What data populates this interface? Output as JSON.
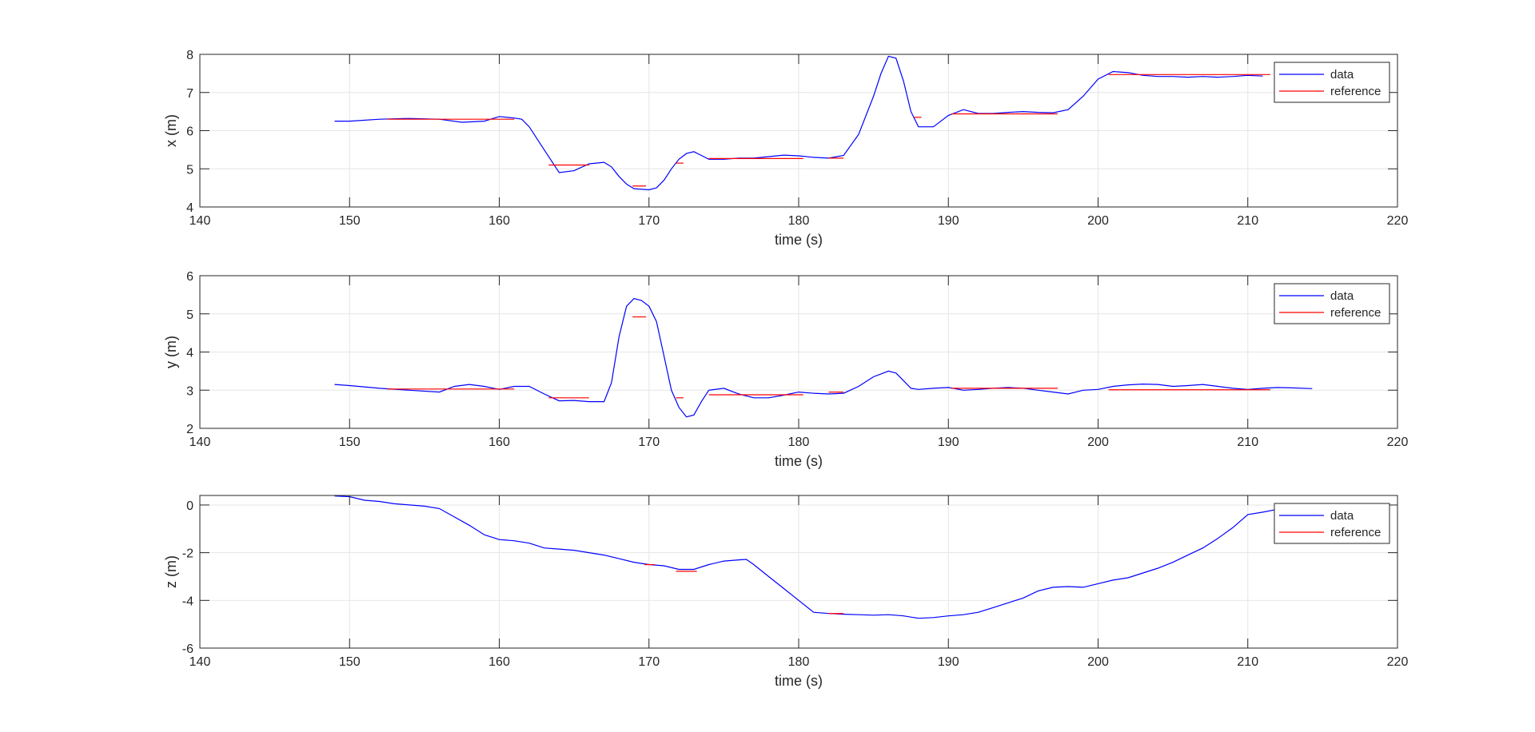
{
  "chart_data": [
    {
      "type": "line",
      "title": "",
      "xlabel": "time (s)",
      "ylabel": "x (m)",
      "xlim": [
        140,
        220
      ],
      "ylim": [
        4,
        8
      ],
      "xticks": [
        140,
        150,
        160,
        170,
        180,
        190,
        200,
        210,
        220
      ],
      "yticks": [
        4,
        5,
        6,
        7,
        8
      ],
      "grid": true,
      "legend": {
        "position": "top-right",
        "entries": [
          "data",
          "reference"
        ]
      },
      "series": [
        {
          "name": "data",
          "color": "#0000ff",
          "x": [
            149,
            150,
            152,
            154,
            156,
            157.5,
            159,
            160,
            161,
            161.5,
            162,
            163,
            164,
            165,
            166,
            167,
            167.5,
            168,
            168.5,
            169,
            170,
            170.5,
            171,
            171.5,
            172,
            172.5,
            173,
            173.5,
            174,
            175,
            176,
            177,
            178,
            179,
            180,
            181,
            182,
            183,
            184,
            185,
            185.5,
            186,
            186.5,
            187,
            187.5,
            188,
            189,
            190,
            191,
            192,
            193,
            194,
            195,
            196,
            197,
            198,
            199,
            200,
            201,
            202,
            203,
            204,
            205,
            206,
            207,
            208,
            209,
            210,
            211
          ],
          "values": [
            6.25,
            6.25,
            6.3,
            6.32,
            6.3,
            6.22,
            6.25,
            6.37,
            6.33,
            6.3,
            6.1,
            5.5,
            4.9,
            4.95,
            5.13,
            5.17,
            5.05,
            4.8,
            4.6,
            4.48,
            4.45,
            4.5,
            4.7,
            5.0,
            5.25,
            5.4,
            5.45,
            5.35,
            5.25,
            5.25,
            5.28,
            5.28,
            5.32,
            5.36,
            5.34,
            5.3,
            5.28,
            5.35,
            5.9,
            6.9,
            7.5,
            7.95,
            7.9,
            7.3,
            6.5,
            6.1,
            6.1,
            6.4,
            6.55,
            6.45,
            6.45,
            6.48,
            6.5,
            6.48,
            6.47,
            6.55,
            6.9,
            7.35,
            7.55,
            7.52,
            7.45,
            7.42,
            7.42,
            7.4,
            7.42,
            7.4,
            7.42,
            7.45,
            7.43
          ]
        },
        {
          "name": "reference",
          "color": "#ff0000",
          "segments": [
            {
              "x": [
                152.5,
                161
              ],
              "y": 6.3
            },
            {
              "x": [
                163.3,
                166
              ],
              "y": 5.1
            },
            {
              "x": [
                168.9,
                169.8
              ],
              "y": 4.55
            },
            {
              "x": [
                171.8,
                172.3
              ],
              "y": 5.15
            },
            {
              "x": [
                174,
                180.3
              ],
              "y": 5.27
            },
            {
              "x": [
                182,
                183
              ],
              "y": 5.28
            },
            {
              "x": [
                187.7,
                188.2
              ],
              "y": 6.35
            },
            {
              "x": [
                190.2,
                197.3
              ],
              "y": 6.44
            },
            {
              "x": [
                200.7,
                211.5
              ],
              "y": 7.47
            }
          ]
        }
      ]
    },
    {
      "type": "line",
      "title": "",
      "xlabel": "time (s)",
      "ylabel": "y (m)",
      "xlim": [
        140,
        220
      ],
      "ylim": [
        2,
        6
      ],
      "xticks": [
        140,
        150,
        160,
        170,
        180,
        190,
        200,
        210,
        220
      ],
      "yticks": [
        2,
        3,
        4,
        5,
        6
      ],
      "grid": true,
      "legend": {
        "position": "top-right",
        "entries": [
          "data",
          "reference"
        ]
      },
      "series": [
        {
          "name": "data",
          "color": "#0000ff",
          "x": [
            149,
            150,
            152,
            154,
            156,
            157,
            158,
            159,
            160,
            161,
            162,
            163,
            164,
            165,
            166,
            167,
            167.5,
            168,
            168.5,
            169,
            169.5,
            170,
            170.5,
            171,
            171.5,
            172,
            172.5,
            173,
            173.5,
            174,
            175,
            176,
            177,
            178,
            179,
            180,
            181,
            182,
            183,
            184,
            185,
            186,
            186.5,
            187,
            187.5,
            188,
            189,
            190,
            191,
            192,
            193,
            194,
            195,
            196,
            197,
            198,
            199,
            200,
            201,
            202,
            203,
            204,
            205,
            206,
            207,
            208,
            209,
            210,
            211,
            212,
            213,
            214.3
          ],
          "values": [
            3.15,
            3.12,
            3.05,
            3.0,
            2.95,
            3.1,
            3.15,
            3.1,
            3.02,
            3.1,
            3.1,
            2.9,
            2.72,
            2.73,
            2.7,
            2.7,
            3.2,
            4.4,
            5.2,
            5.4,
            5.35,
            5.2,
            4.8,
            3.9,
            3.0,
            2.55,
            2.3,
            2.35,
            2.7,
            3.0,
            3.05,
            2.9,
            2.8,
            2.8,
            2.87,
            2.95,
            2.92,
            2.9,
            2.92,
            3.1,
            3.35,
            3.5,
            3.45,
            3.25,
            3.05,
            3.02,
            3.05,
            3.07,
            3.0,
            3.02,
            3.05,
            3.07,
            3.05,
            3.0,
            2.95,
            2.9,
            3.0,
            3.02,
            3.1,
            3.14,
            3.16,
            3.15,
            3.1,
            3.12,
            3.15,
            3.1,
            3.05,
            3.02,
            3.05,
            3.07,
            3.06,
            3.04
          ]
        },
        {
          "name": "reference",
          "color": "#ff0000",
          "segments": [
            {
              "x": [
                152.5,
                161
              ],
              "y": 3.03
            },
            {
              "x": [
                163.3,
                166
              ],
              "y": 2.8
            },
            {
              "x": [
                168.9,
                169.8
              ],
              "y": 4.92
            },
            {
              "x": [
                171.8,
                172.3
              ],
              "y": 2.8
            },
            {
              "x": [
                174,
                180.3
              ],
              "y": 2.88
            },
            {
              "x": [
                182,
                183
              ],
              "y": 2.95
            },
            {
              "x": [
                190.2,
                197.3
              ],
              "y": 3.05
            },
            {
              "x": [
                200.7,
                211.5
              ],
              "y": 3.01
            }
          ]
        }
      ]
    },
    {
      "type": "line",
      "title": "",
      "xlabel": "time (s)",
      "ylabel": "z (m)",
      "xlim": [
        140,
        220
      ],
      "ylim": [
        -6,
        0.4
      ],
      "xticks": [
        140,
        150,
        160,
        170,
        180,
        190,
        200,
        210,
        220
      ],
      "yticks": [
        -6,
        -4,
        -2,
        0
      ],
      "grid": true,
      "legend": {
        "position": "top-right",
        "entries": [
          "data",
          "reference"
        ]
      },
      "series": [
        {
          "name": "data",
          "color": "#0000ff",
          "x": [
            149,
            150,
            151,
            152,
            153,
            154,
            155,
            156,
            157,
            158,
            159,
            160,
            161,
            162,
            163,
            164,
            165,
            166,
            167,
            168,
            169,
            170,
            171,
            172,
            173,
            174,
            175,
            176,
            176.5,
            177,
            178,
            179,
            180,
            181,
            182,
            183,
            184,
            185,
            186,
            187,
            188,
            189,
            190,
            191,
            192,
            193,
            194,
            195,
            196,
            197,
            198,
            199,
            200,
            201,
            202,
            203,
            204,
            205,
            206,
            207,
            208,
            209,
            210,
            211,
            212,
            213,
            214.3
          ],
          "values": [
            0.38,
            0.35,
            0.2,
            0.15,
            0.05,
            0.0,
            -0.05,
            -0.15,
            -0.5,
            -0.85,
            -1.25,
            -1.45,
            -1.5,
            -1.6,
            -1.8,
            -1.85,
            -1.9,
            -2.0,
            -2.1,
            -2.25,
            -2.4,
            -2.5,
            -2.55,
            -2.7,
            -2.7,
            -2.5,
            -2.35,
            -2.3,
            -2.28,
            -2.5,
            -3.0,
            -3.5,
            -4.0,
            -4.5,
            -4.55,
            -4.58,
            -4.6,
            -4.62,
            -4.6,
            -4.65,
            -4.75,
            -4.72,
            -4.65,
            -4.6,
            -4.5,
            -4.3,
            -4.1,
            -3.9,
            -3.6,
            -3.45,
            -3.42,
            -3.45,
            -3.3,
            -3.15,
            -3.05,
            -2.85,
            -2.65,
            -2.4,
            -2.1,
            -1.8,
            -1.4,
            -0.95,
            -0.4,
            -0.3,
            -0.18,
            -0.08,
            -0.05
          ]
        },
        {
          "name": "reference",
          "color": "#ff0000",
          "segments": [
            {
              "x": [
                169.7,
                170.4
              ],
              "y": -2.5
            },
            {
              "x": [
                171.8,
                173.2
              ],
              "y": -2.78
            },
            {
              "x": [
                182,
                183
              ],
              "y": -4.55
            }
          ]
        }
      ]
    }
  ]
}
